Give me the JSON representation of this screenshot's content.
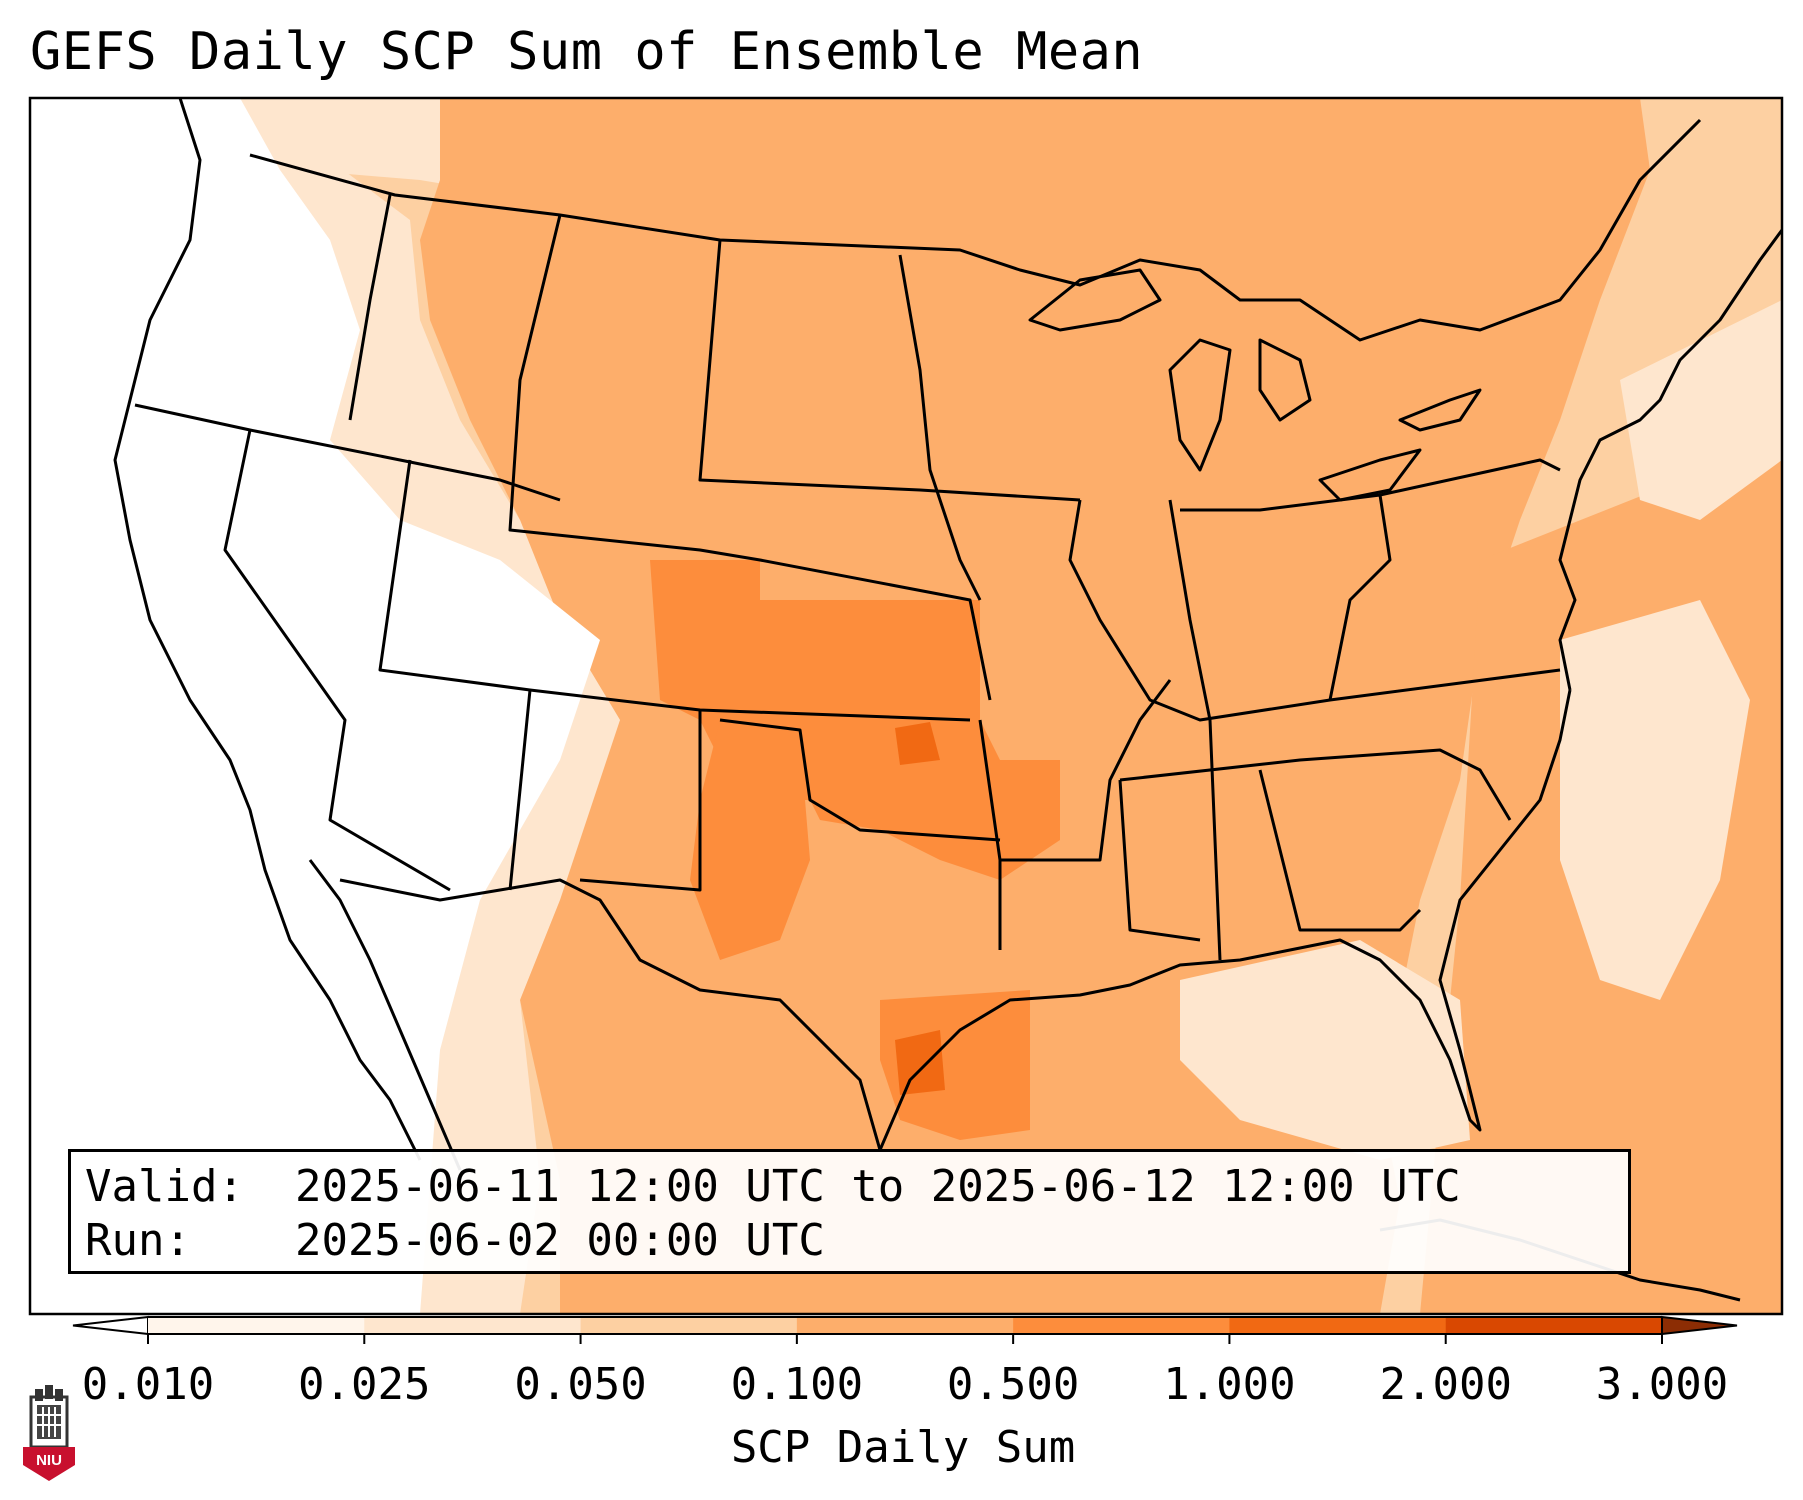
{
  "title": "GEFS Daily SCP Sum of Ensemble Mean",
  "info": {
    "valid_label": "Valid:",
    "valid_value": "2025-06-11 12:00 UTC to 2025-06-12 12:00 UTC",
    "run_label": "Run:",
    "run_value": "2025-06-02 00:00 UTC"
  },
  "colorbar": {
    "label": "SCP Daily Sum",
    "ticks": [
      "0.010",
      "0.025",
      "0.050",
      "0.100",
      "0.500",
      "1.000",
      "2.000",
      "3.000"
    ],
    "colors": [
      "#fff5eb",
      "#fee6ce",
      "#fdd0a2",
      "#fdae6b",
      "#fd8d3c",
      "#f16913",
      "#d94801"
    ],
    "under_color": "#ffffff",
    "over_color": "#8c2d04"
  },
  "logo": {
    "text": "NIU",
    "color": "#c8102e"
  }
}
